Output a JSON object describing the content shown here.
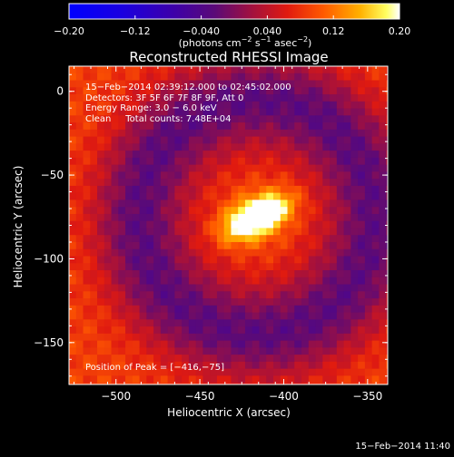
{
  "chart_data": {
    "type": "heatmap",
    "title": "Reconstructed RHESSI Image",
    "xlabel": "Heliocentric X (arcsec)",
    "ylabel": "Heliocentric Y (arcsec)",
    "xlim": [
      -528,
      -338
    ],
    "ylim": [
      -175,
      15
    ],
    "x_ticks": [
      -500,
      -450,
      -400,
      -350
    ],
    "y_ticks": [
      0,
      -50,
      -100,
      -150
    ],
    "x_tick_labels": [
      "−500",
      "−450",
      "−400",
      "−350"
    ],
    "y_tick_labels": [
      "0",
      "−50",
      "−100",
      "−150"
    ],
    "colorbar": {
      "min": -0.2,
      "max": 0.2,
      "ticks": [
        -0.2,
        -0.12,
        -0.04,
        0.04,
        0.12,
        0.2
      ],
      "tick_labels": [
        "−0.20",
        "−0.12",
        "−0.040",
        "0.040",
        "0.12",
        "0.20"
      ],
      "unit_label": "(photons cm",
      "unit_sup1": "−2",
      "unit_mid": " s",
      "unit_sup2": "−1",
      "unit_mid2": " asec",
      "unit_sup3": "−2",
      "unit_end": ")"
    },
    "peak": {
      "x": -416,
      "y": -75
    },
    "annotations": [
      "15−Feb−2014 02:39:12.000 to 02:45:02.000",
      "Detectors: 3F 5F 6F 7F 8F 9F, Att 0",
      "Energy Range: 3.0 − 6.0 keV",
      "Clean     Total counts: 7.48E+04"
    ],
    "peak_label": "Position of Peak = [−416,−75]",
    "grid": false,
    "colors": {
      "background": "#000000",
      "axes": "#ffffff"
    }
  },
  "footer": {
    "timestamp": "15−Feb−2014 11:40"
  }
}
